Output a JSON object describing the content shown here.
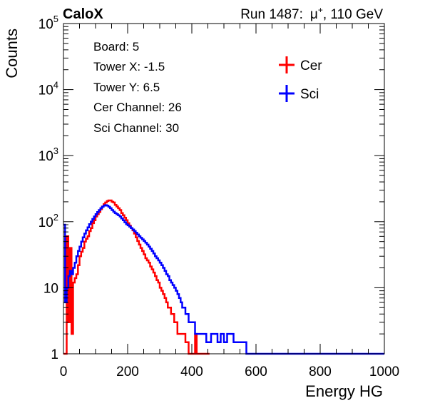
{
  "header": {
    "experiment": "CaloX",
    "run_label": "Run 1487:",
    "particle": "μ",
    "charge": "+",
    "energy": ", 110 GeV"
  },
  "info_box": {
    "lines": [
      "Board: 5",
      "Tower X: -1.5",
      "Tower Y: 6.5",
      "Cer Channel: 26",
      "Sci Channel: 30"
    ]
  },
  "colors": {
    "cer": "#ff0000",
    "sci": "#0000ff"
  },
  "chart_data": {
    "type": "line",
    "subtype": "step-histogram",
    "xlabel": "Energy HG",
    "ylabel": "Counts",
    "xlim": [
      0,
      1000
    ],
    "ylim": [
      1,
      100000
    ],
    "yscale": "log",
    "x_ticks": [
      "0",
      "200",
      "400",
      "600",
      "800",
      "1000"
    ],
    "y_ticks": [
      {
        "value": 1,
        "base": "1",
        "exp": ""
      },
      {
        "value": 10,
        "base": "10",
        "exp": ""
      },
      {
        "value": 100,
        "base": "10",
        "exp": "2"
      },
      {
        "value": 1000,
        "base": "10",
        "exp": "3"
      },
      {
        "value": 10000,
        "base": "10",
        "exp": "4"
      },
      {
        "value": 100000,
        "base": "10",
        "exp": "5"
      }
    ],
    "legend_position": "top-right",
    "series": [
      {
        "name": "Cer",
        "color": "#ff0000",
        "x": [
          0,
          5,
          10,
          15,
          20,
          25,
          30,
          35,
          40,
          45,
          50,
          55,
          60,
          65,
          70,
          75,
          80,
          85,
          90,
          95,
          100,
          105,
          110,
          115,
          120,
          125,
          130,
          135,
          140,
          145,
          150,
          155,
          160,
          165,
          170,
          175,
          180,
          185,
          190,
          195,
          200,
          205,
          210,
          215,
          220,
          225,
          230,
          235,
          240,
          245,
          250,
          255,
          260,
          265,
          270,
          275,
          280,
          285,
          290,
          295,
          300,
          305,
          310,
          315,
          320,
          325,
          330,
          335,
          340,
          345,
          350,
          355,
          360,
          365,
          370,
          375,
          380,
          385,
          390,
          395,
          400,
          405,
          410,
          415,
          420,
          425,
          430,
          435,
          440,
          445,
          450
        ],
        "y": [
          1,
          1,
          60,
          3,
          40,
          2,
          12,
          14,
          16,
          22,
          30,
          35,
          40,
          50,
          55,
          60,
          72,
          80,
          95,
          105,
          120,
          130,
          140,
          155,
          170,
          185,
          195,
          205,
          210,
          210,
          200,
          195,
          180,
          170,
          160,
          150,
          135,
          125,
          115,
          105,
          95,
          87,
          80,
          74,
          66,
          58,
          51,
          45,
          40,
          36,
          32,
          28,
          26,
          24,
          21,
          19,
          17,
          15,
          13,
          12,
          10,
          9,
          8,
          7,
          6,
          5,
          5,
          4,
          4,
          3,
          3,
          2,
          2,
          2,
          2,
          2,
          1.5,
          1.5,
          1,
          1,
          1,
          1,
          2,
          1,
          1,
          1,
          1,
          1,
          1,
          1,
          1
        ]
      },
      {
        "name": "Sci",
        "color": "#0000ff",
        "x": [
          0,
          5,
          10,
          15,
          20,
          25,
          30,
          35,
          40,
          45,
          50,
          55,
          60,
          65,
          70,
          75,
          80,
          85,
          90,
          95,
          100,
          105,
          110,
          115,
          120,
          125,
          130,
          135,
          140,
          145,
          150,
          155,
          160,
          165,
          170,
          175,
          180,
          185,
          190,
          195,
          200,
          205,
          210,
          215,
          220,
          225,
          230,
          235,
          240,
          245,
          250,
          255,
          260,
          265,
          270,
          275,
          280,
          285,
          290,
          295,
          300,
          305,
          310,
          315,
          320,
          325,
          330,
          335,
          340,
          345,
          350,
          355,
          360,
          365,
          370,
          375,
          380,
          385,
          390,
          395,
          400,
          405,
          410,
          415,
          420,
          425,
          430,
          435,
          440,
          445,
          450,
          460,
          470,
          480,
          490,
          500,
          510,
          520,
          530,
          540,
          550,
          560,
          570,
          580,
          590,
          600,
          610,
          620,
          640,
          660,
          680,
          700,
          720,
          740,
          760,
          780,
          800,
          850,
          900,
          950,
          1000
        ],
        "y": [
          90,
          6,
          10,
          15,
          18,
          16,
          20,
          24,
          30,
          36,
          42,
          50,
          58,
          66,
          74,
          82,
          92,
          100,
          110,
          120,
          130,
          140,
          150,
          160,
          168,
          175,
          178,
          175,
          168,
          160,
          150,
          142,
          135,
          130,
          125,
          120,
          112,
          105,
          98,
          92,
          88,
          84,
          80,
          76,
          72,
          68,
          64,
          60,
          57,
          54,
          51,
          48,
          45,
          42,
          39,
          36,
          33,
          30,
          28,
          26,
          24,
          22,
          20,
          18,
          16,
          15,
          13,
          12,
          11,
          10,
          9,
          8,
          7,
          6,
          5,
          5,
          4,
          4,
          3,
          3,
          3,
          3,
          2,
          2,
          2,
          2,
          2,
          2,
          2,
          1.5,
          1.5,
          2,
          2,
          1.5,
          2,
          1.5,
          2,
          2,
          1.5,
          1.5,
          1.5,
          1.5,
          1,
          1,
          1,
          1,
          1,
          1,
          1,
          1,
          1,
          1,
          1,
          1,
          1,
          1,
          1,
          1,
          1,
          1,
          1
        ]
      }
    ]
  }
}
